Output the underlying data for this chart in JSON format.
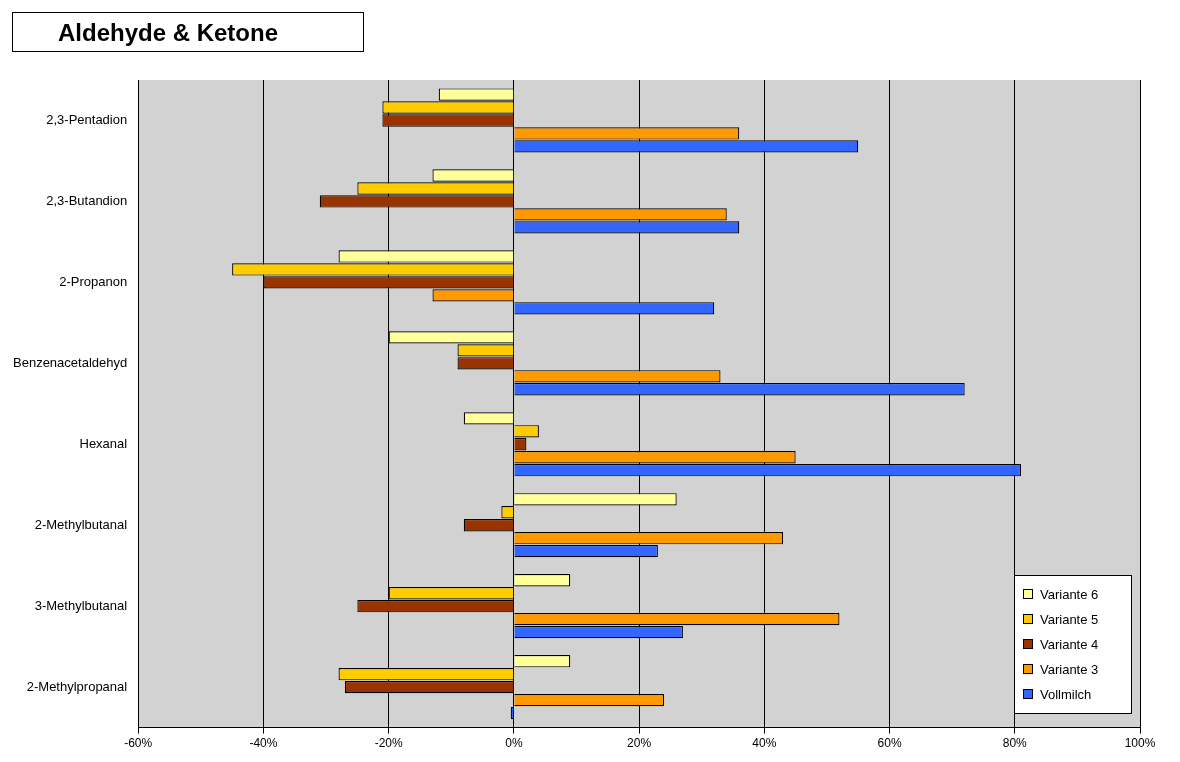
{
  "chart_data": {
    "type": "bar",
    "orientation": "horizontal",
    "title": "Aldehyde & Ketone",
    "categories": [
      "2,3-Pentadion",
      "2,3-Butandion",
      "2-Propanon",
      "Benzenacetaldehyd",
      "Hexanal",
      "2-Methylbutanal",
      "3-Methylbutanal",
      "2-Methylpropanal"
    ],
    "series": [
      {
        "name": "Variante 6",
        "color": "#ffff99",
        "values": [
          -12,
          -13,
          -28,
          -20,
          -8,
          26,
          9,
          9
        ]
      },
      {
        "name": "Variante 5",
        "color": "#ffcc00",
        "values": [
          -21,
          -25,
          -45,
          -9,
          4,
          -2,
          -20,
          -28
        ]
      },
      {
        "name": "Variante 4",
        "color": "#993300",
        "values": [
          -21,
          -31,
          -40,
          -9,
          2,
          -8,
          -25,
          -27
        ]
      },
      {
        "name": "Variante 3",
        "color": "#ff9900",
        "values": [
          36,
          34,
          -13,
          33,
          45,
          43,
          52,
          24
        ]
      },
      {
        "name": "Vollmilch",
        "color": "#3366ff",
        "values": [
          55,
          36,
          32,
          72,
          81,
          23,
          27,
          -0.5
        ]
      }
    ],
    "xlim": [
      -60,
      100
    ],
    "xticks": [
      {
        "value": -60,
        "label": "-60%"
      },
      {
        "value": -40,
        "label": "-40%"
      },
      {
        "value": -20,
        "label": "-20%"
      },
      {
        "value": 0,
        "label": "0%"
      },
      {
        "value": 20,
        "label": "20%"
      },
      {
        "value": 40,
        "label": "40%"
      },
      {
        "value": 60,
        "label": "60%"
      },
      {
        "value": 80,
        "label": "80%"
      },
      {
        "value": 100,
        "label": "100%"
      }
    ],
    "grid": "x",
    "legend": "bottom right"
  }
}
